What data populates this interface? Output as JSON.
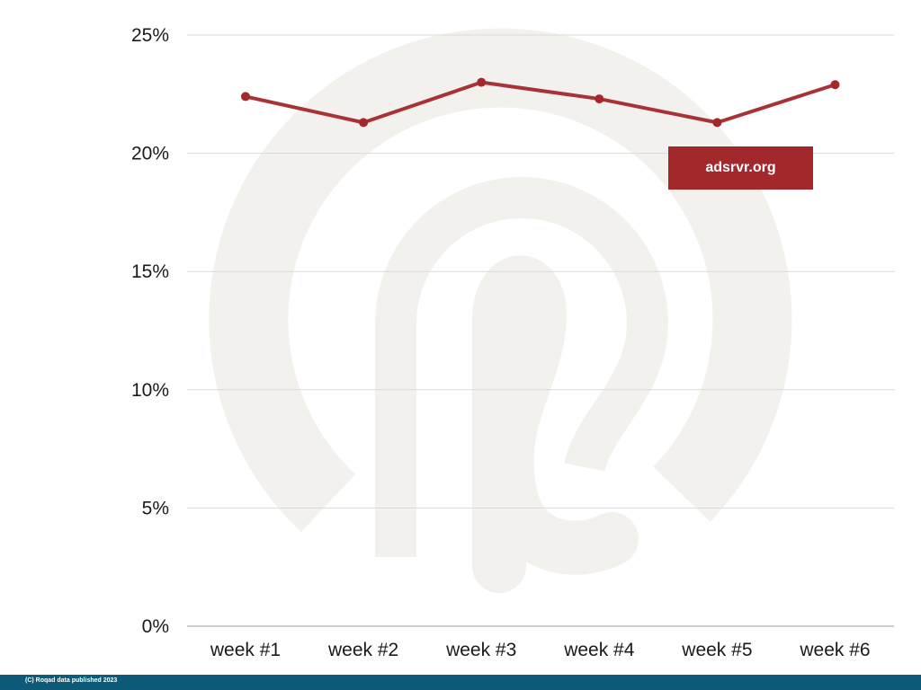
{
  "colors": {
    "line": "#a3282c",
    "badge_bg": "#a3282c",
    "footer_bg": "#0c5a78",
    "watermark": "#f3f1ee",
    "grid": "#d9d9d9"
  },
  "badge": {
    "label": "adsrvr.org"
  },
  "footer": {
    "text": "(C) Roqad data published 2023"
  },
  "watermark": {
    "icon": "roqad-logo-watermark"
  },
  "chart_data": {
    "type": "line",
    "categories": [
      "week #1",
      "week #2",
      "week #3",
      "week #4",
      "week #5",
      "week #6"
    ],
    "series": [
      {
        "values": [
          22.4,
          21.3,
          23.0,
          22.3,
          21.3,
          22.9
        ],
        "color": "#a3282c"
      }
    ],
    "y_ticks": [
      0,
      5,
      10,
      15,
      20,
      25
    ],
    "y_tick_labels": [
      "0%",
      "5%",
      "10%",
      "15%",
      "20%",
      "25%"
    ],
    "ylim": [
      0,
      25
    ],
    "title": "",
    "xlabel": "",
    "ylabel": "",
    "grid": true,
    "legend": "none"
  }
}
